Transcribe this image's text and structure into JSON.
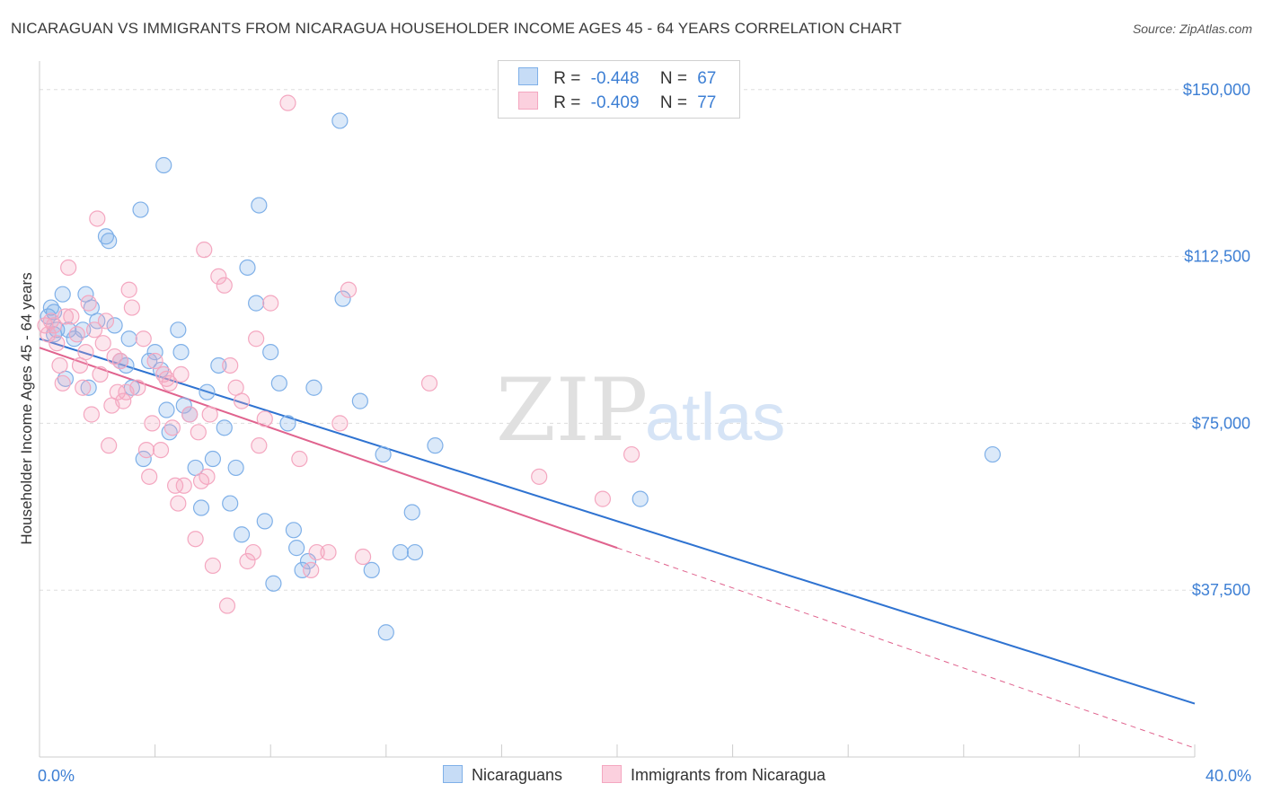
{
  "title": "NICARAGUAN VS IMMIGRANTS FROM NICARAGUA HOUSEHOLDER INCOME AGES 45 - 64 YEARS CORRELATION CHART",
  "source": "Source: ZipAtlas.com",
  "watermark": {
    "zip": "ZIP",
    "atlas": "atlas"
  },
  "legend": {
    "rows": [
      {
        "r_label": "R =",
        "r_value": "-0.448",
        "n_label": "N =",
        "n_value": "67"
      },
      {
        "r_label": "R =",
        "r_value": "-0.409",
        "n_label": "N =",
        "n_value": "77"
      }
    ]
  },
  "chart_data": {
    "type": "scatter",
    "ylabel": "Householder Income Ages 45 - 64 years",
    "xlabel": "",
    "x_tick_labels": [
      "0.0%",
      "40.0%"
    ],
    "y_tick_labels": [
      "$150,000",
      "$112,500",
      "$75,000",
      "$37,500"
    ],
    "y_ticks": [
      150000,
      112500,
      75000,
      37500
    ],
    "xlim": [
      0,
      40
    ],
    "ylim": [
      0,
      155000
    ],
    "grid": true,
    "legend_position": "bottom",
    "series": [
      {
        "name": "Nicaraguans",
        "color": "#7fb0e8",
        "line_color": "#2f73d1",
        "trend": {
          "x0": 0.0,
          "y0": 94000,
          "x1": 40.0,
          "y1": 12000,
          "dashed_from": null
        },
        "points": [
          [
            0.3,
            99000
          ],
          [
            0.5,
            100000
          ],
          [
            0.8,
            104000
          ],
          [
            0.5,
            95000
          ],
          [
            1.0,
            96000
          ],
          [
            0.9,
            85000
          ],
          [
            1.5,
            96000
          ],
          [
            1.6,
            104000
          ],
          [
            1.8,
            101000
          ],
          [
            1.7,
            83000
          ],
          [
            2.0,
            98000
          ],
          [
            2.3,
            117000
          ],
          [
            2.4,
            116000
          ],
          [
            2.6,
            97000
          ],
          [
            2.8,
            89000
          ],
          [
            3.1,
            94000
          ],
          [
            3.2,
            83000
          ],
          [
            3.5,
            123000
          ],
          [
            3.6,
            67000
          ],
          [
            3.8,
            89000
          ],
          [
            4.0,
            91000
          ],
          [
            4.2,
            87000
          ],
          [
            4.3,
            133000
          ],
          [
            4.4,
            78000
          ],
          [
            4.5,
            73000
          ],
          [
            4.8,
            96000
          ],
          [
            4.9,
            91000
          ],
          [
            5.0,
            79000
          ],
          [
            5.2,
            77000
          ],
          [
            5.4,
            65000
          ],
          [
            5.6,
            56000
          ],
          [
            5.8,
            82000
          ],
          [
            6.0,
            67000
          ],
          [
            6.2,
            88000
          ],
          [
            6.4,
            74000
          ],
          [
            6.6,
            57000
          ],
          [
            6.8,
            65000
          ],
          [
            7.0,
            50000
          ],
          [
            7.2,
            110000
          ],
          [
            7.5,
            102000
          ],
          [
            7.6,
            124000
          ],
          [
            7.8,
            53000
          ],
          [
            8.0,
            91000
          ],
          [
            8.1,
            39000
          ],
          [
            8.3,
            84000
          ],
          [
            8.6,
            75000
          ],
          [
            8.8,
            51000
          ],
          [
            8.9,
            47000
          ],
          [
            9.1,
            42000
          ],
          [
            9.3,
            44000
          ],
          [
            9.5,
            83000
          ],
          [
            10.4,
            143000
          ],
          [
            10.5,
            103000
          ],
          [
            11.1,
            80000
          ],
          [
            11.5,
            42000
          ],
          [
            11.9,
            68000
          ],
          [
            12.0,
            28000
          ],
          [
            12.5,
            46000
          ],
          [
            12.9,
            55000
          ],
          [
            13.0,
            46000
          ],
          [
            13.7,
            70000
          ],
          [
            20.8,
            58000
          ],
          [
            33.0,
            68000
          ],
          [
            0.4,
            101000
          ],
          [
            0.6,
            96000
          ],
          [
            1.2,
            94000
          ],
          [
            3.0,
            88000
          ]
        ]
      },
      {
        "name": "Immigrants from Nicaragua",
        "color": "#f4a7c0",
        "line_color": "#e0638e",
        "trend": {
          "x0": 0.0,
          "y0": 92000,
          "x1": 40.0,
          "y1": 2000,
          "dashed_from": 20.0
        },
        "points": [
          [
            0.2,
            97000
          ],
          [
            0.4,
            98000
          ],
          [
            0.5,
            97000
          ],
          [
            0.6,
            93000
          ],
          [
            0.7,
            88000
          ],
          [
            0.8,
            84000
          ],
          [
            1.0,
            110000
          ],
          [
            1.1,
            99000
          ],
          [
            1.3,
            95000
          ],
          [
            1.4,
            88000
          ],
          [
            1.5,
            83000
          ],
          [
            1.7,
            102000
          ],
          [
            1.8,
            77000
          ],
          [
            1.9,
            96000
          ],
          [
            2.0,
            121000
          ],
          [
            2.1,
            86000
          ],
          [
            2.2,
            93000
          ],
          [
            2.3,
            98000
          ],
          [
            2.4,
            70000
          ],
          [
            2.5,
            79000
          ],
          [
            2.6,
            90000
          ],
          [
            2.7,
            82000
          ],
          [
            2.8,
            89000
          ],
          [
            3.0,
            82000
          ],
          [
            3.1,
            105000
          ],
          [
            3.2,
            101000
          ],
          [
            3.4,
            83000
          ],
          [
            3.6,
            94000
          ],
          [
            3.7,
            69000
          ],
          [
            3.8,
            63000
          ],
          [
            3.9,
            75000
          ],
          [
            4.0,
            89000
          ],
          [
            4.2,
            69000
          ],
          [
            4.3,
            86000
          ],
          [
            4.5,
            84000
          ],
          [
            4.6,
            74000
          ],
          [
            4.7,
            61000
          ],
          [
            4.8,
            57000
          ],
          [
            4.9,
            86000
          ],
          [
            5.0,
            61000
          ],
          [
            5.2,
            77000
          ],
          [
            5.4,
            49000
          ],
          [
            5.5,
            73000
          ],
          [
            5.6,
            62000
          ],
          [
            5.7,
            114000
          ],
          [
            5.8,
            63000
          ],
          [
            6.0,
            43000
          ],
          [
            6.2,
            108000
          ],
          [
            6.4,
            106000
          ],
          [
            6.5,
            34000
          ],
          [
            6.6,
            88000
          ],
          [
            6.8,
            83000
          ],
          [
            7.0,
            80000
          ],
          [
            7.2,
            44000
          ],
          [
            7.4,
            46000
          ],
          [
            7.5,
            94000
          ],
          [
            7.6,
            70000
          ],
          [
            7.8,
            76000
          ],
          [
            8.0,
            102000
          ],
          [
            8.6,
            147000
          ],
          [
            9.0,
            67000
          ],
          [
            9.4,
            42000
          ],
          [
            9.6,
            46000
          ],
          [
            10.0,
            46000
          ],
          [
            10.4,
            75000
          ],
          [
            10.7,
            105000
          ],
          [
            11.2,
            45000
          ],
          [
            13.5,
            84000
          ],
          [
            17.3,
            63000
          ],
          [
            19.5,
            58000
          ],
          [
            20.5,
            68000
          ],
          [
            0.3,
            95000
          ],
          [
            0.9,
            99000
          ],
          [
            1.6,
            91000
          ],
          [
            2.9,
            80000
          ],
          [
            4.4,
            85000
          ],
          [
            5.9,
            77000
          ]
        ]
      }
    ]
  }
}
